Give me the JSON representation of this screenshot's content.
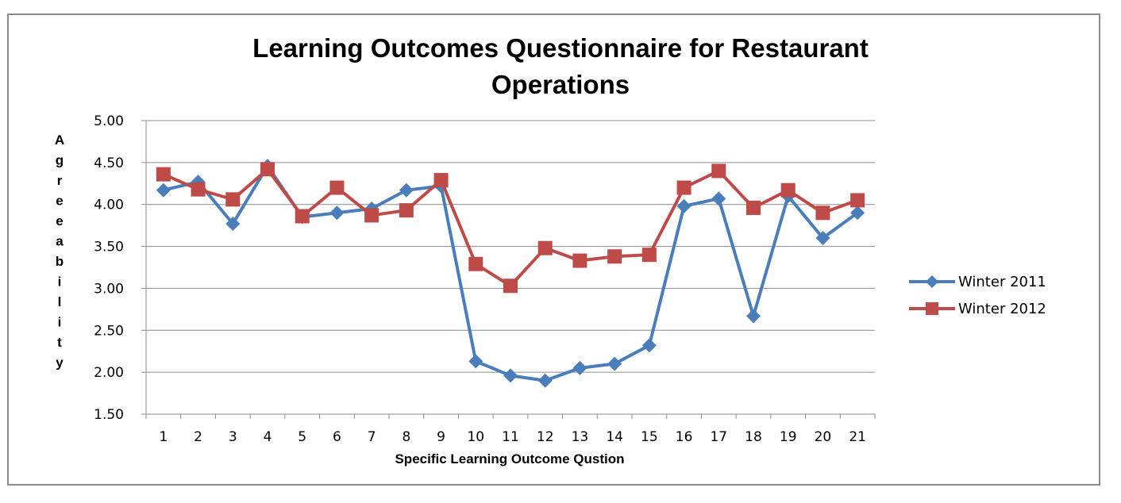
{
  "chart_data": {
    "type": "line",
    "title_lines": [
      "Learning Outcomes Questionnaire for Restaurant",
      "Operations"
    ],
    "xlabel": "Specific Learning  Outcome Qustion",
    "ylabel": "Agreeability",
    "ylim": [
      1.5,
      5.0
    ],
    "yticks": [
      "1.50",
      "2.00",
      "2.50",
      "3.00",
      "3.50",
      "4.00",
      "4.50",
      "5.00"
    ],
    "categories": [
      "1",
      "2",
      "3",
      "4",
      "5",
      "6",
      "7",
      "8",
      "9",
      "10",
      "11",
      "12",
      "13",
      "14",
      "15",
      "16",
      "17",
      "18",
      "19",
      "20",
      "21"
    ],
    "grid": "horizontal",
    "legend_position": "right",
    "series": [
      {
        "name": "Winter 2011",
        "color": "#4a7ebb",
        "marker": "diamond",
        "values": [
          4.17,
          4.27,
          3.77,
          4.46,
          3.85,
          3.9,
          3.95,
          4.17,
          4.22,
          2.13,
          1.96,
          1.9,
          2.05,
          2.1,
          2.32,
          3.98,
          4.07,
          2.67,
          4.1,
          3.6,
          3.9
        ]
      },
      {
        "name": "Winter 2012",
        "color": "#be4b48",
        "marker": "square",
        "values": [
          4.36,
          4.18,
          4.06,
          4.42,
          3.86,
          4.2,
          3.87,
          3.93,
          4.29,
          3.29,
          3.03,
          3.48,
          3.33,
          3.38,
          3.4,
          4.2,
          4.4,
          3.96,
          4.17,
          3.9,
          4.05
        ]
      }
    ]
  }
}
